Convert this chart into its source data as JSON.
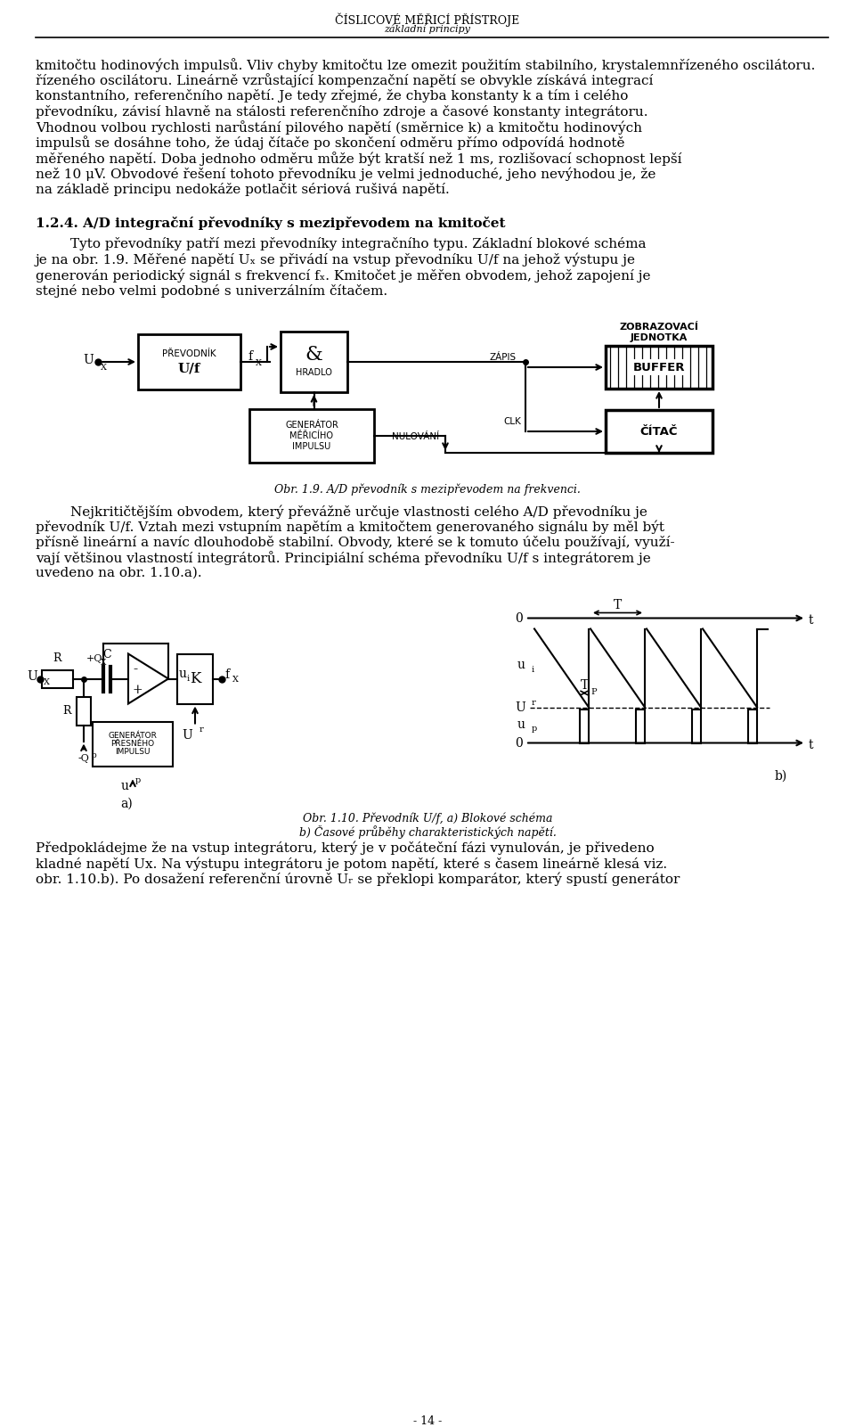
{
  "header_title": "ČÍSLICOVÉ MĚŘICÍ PŘÍSTROJE",
  "header_subtitle": "základní principy",
  "page_number": "- 14 -",
  "background_color": "#ffffff",
  "p1_lines": [
    "kmitočtu hodinových impulsů. Vliv chyby kmitočtu lze omezit použitím stabilního, krystalemnřízeného oscilátoru.",
    "řízeného oscilátoru. Lineárně vzrůstající kompenzační napětí se obvykle získává integrací",
    "konstantního, referenčního napětí. Je tedy zřejmé, že chyba konstanty k a tím i celého",
    "převodníku, závisí hlavně na stálosti referenčního zdroje a časové konstanty integrátoru.",
    "Vhodnou volbou rychlosti narůstání pilového napětí (směrnice k) a kmitočtu hodinových",
    "impulsů se dosáhne toho, že údaj čítače po skončení odměru přímo odpovídá hodnotě",
    "měřeného napětí. Doba jednoho odměru může být kratší než 1 ms, rozlišovací schopnost lepší",
    "než 10 μV. Obvodové řešení tohoto převodníku je velmi jednoduché, jeho nevýhodou je, že",
    "na základě principu nedokáže potlačit sériová rušivá napětí."
  ],
  "section_header": "1.2.4. A/D integrační převodníky s mezipřevodem na kmitočet",
  "p2_lines": [
    "        Tyto převodníky patří mezi převodníky integračního typu. Základní blokové schéma",
    "je na obr. 1.9. Měřené napětí Uₓ se přivádí na vstup převodníku U/f na jehož výstupu je",
    "generován periodický signál s frekvencí fₓ. Kmitočet je měřen obvodem, jehož zapojení je",
    "stejné nebo velmi podobné s univerzálním čítačem."
  ],
  "fig19_caption": "Obr. 1.9. A/D převodník s mezipřevodem na frekvenci.",
  "p3_lines": [
    "        Nejkritičtějším obvodem, který převážně určuje vlastnosti celého A/D převodníku je",
    "převodník U/f. Vztah mezi vstupním napětím a kmitočtem generovaného signálu by měl být",
    "přísně lineární a navíc dlouhodobě stabilní. Obvody, které se k tomuto účelu používají, využí-",
    "vají většinou vlastností integrátorů. Principiální schéma převodníku U/f s integrátorem je",
    "uvedeno na obr. 1.10.a)."
  ],
  "fig110_caption_a": "Obr. 1.10. Převodník U/f, a) Blokové schéma",
  "fig110_caption_b": "b) Časové průběhy charakteristických napětí.",
  "p4_lines": [
    "Předpokládejme že na vstup integrátoru, který je v počáteční fázi vynulován, je přivedeno",
    "kladné napětí Ux. Na výstupu integrátoru je potom napětí, které s časem lineárně klesá viz.",
    "obr. 1.10.b). Po dosažení referenční úrovně Uᵣ se překlopi komparátor, který spustí generátor"
  ]
}
